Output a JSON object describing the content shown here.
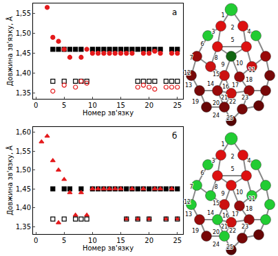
{
  "chart_data": [
    {
      "type": "scatter",
      "panel_label": "а",
      "x_label": "Номер зв'язку",
      "y_label": "Довжина зв'язку, Å",
      "xlim": [
        -0.5,
        26
      ],
      "xticks": [
        0,
        5,
        10,
        15,
        20,
        25
      ],
      "ylim": [
        1.335,
        1.575
      ],
      "yticks": [
        {
          "value": 1.35,
          "label": "1,35"
        },
        {
          "value": 1.4,
          "label": "1,40"
        },
        {
          "value": 1.45,
          "label": "1,45"
        },
        {
          "value": 1.5,
          "label": "1,50"
        },
        {
          "value": 1.55,
          "label": "1,55"
        }
      ],
      "grid": false,
      "series": [
        {
          "color": "#000000",
          "marker": "square",
          "x": [
            3,
            4,
            5,
            6,
            7,
            8,
            10,
            11,
            12,
            13,
            14,
            15,
            16,
            17,
            18,
            19,
            20,
            21,
            22,
            24,
            25
          ],
          "values": [
            1.46,
            1.46,
            1.46,
            1.46,
            1.46,
            1.46,
            1.46,
            1.46,
            1.46,
            1.46,
            1.46,
            1.46,
            1.46,
            1.46,
            1.46,
            1.46,
            1.46,
            1.46,
            1.46,
            1.46,
            1.46
          ]
        },
        {
          "color": "#e41a1c",
          "marker": "circle",
          "x": [
            2,
            3,
            4,
            5,
            6,
            8,
            9,
            10,
            11,
            12,
            13,
            14,
            15,
            16,
            17,
            19,
            20,
            21,
            22,
            24,
            25
          ],
          "values": [
            1.565,
            1.49,
            1.48,
            1.46,
            1.44,
            1.44,
            1.46,
            1.45,
            1.45,
            1.45,
            1.45,
            1.45,
            1.45,
            1.45,
            1.45,
            1.45,
            1.45,
            1.455,
            1.45,
            1.45,
            1.45
          ]
        },
        {
          "color": "#000000",
          "marker": "square-open",
          "x": [
            3,
            5,
            7,
            8,
            9,
            18,
            19,
            20,
            21,
            23,
            24,
            25
          ],
          "values": [
            1.38,
            1.38,
            1.38,
            1.38,
            1.38,
            1.38,
            1.38,
            1.38,
            1.38,
            1.38,
            1.38,
            1.38
          ]
        },
        {
          "color": "#e41a1c",
          "marker": "circle-open",
          "x": [
            3,
            5,
            7,
            8,
            9,
            18,
            19,
            20,
            21,
            23,
            24,
            25
          ],
          "values": [
            1.355,
            1.37,
            1.365,
            1.38,
            1.375,
            1.365,
            1.37,
            1.365,
            1.36,
            1.365,
            1.365,
            1.365
          ]
        }
      ]
    },
    {
      "type": "scatter",
      "panel_label": "б",
      "x_label": "Номер зв'язку",
      "y_label": "Довжина зв'язку, Å",
      "xlim": [
        -0.5,
        26
      ],
      "xticks": [
        0,
        5,
        10,
        15,
        20,
        25
      ],
      "ylim": [
        1.33,
        1.615
      ],
      "yticks": [
        {
          "value": 1.35,
          "label": "1,35"
        },
        {
          "value": 1.4,
          "label": "1,40"
        },
        {
          "value": 1.45,
          "label": "1,45"
        },
        {
          "value": 1.5,
          "label": "1,50"
        },
        {
          "value": 1.55,
          "label": "1,55"
        },
        {
          "value": 1.6,
          "label": "1,60"
        }
      ],
      "grid": false,
      "series": [
        {
          "color": "#000000",
          "marker": "square",
          "x": [
            3,
            5,
            6,
            8,
            10,
            11,
            12,
            13,
            14,
            15,
            16,
            17,
            18,
            19,
            20,
            21,
            22,
            23,
            24,
            25
          ],
          "values": [
            1.45,
            1.45,
            1.45,
            1.45,
            1.45,
            1.45,
            1.45,
            1.45,
            1.45,
            1.45,
            1.45,
            1.45,
            1.45,
            1.45,
            1.45,
            1.45,
            1.45,
            1.45,
            1.45,
            1.45
          ]
        },
        {
          "color": "#e41a1c",
          "marker": "triangle-up",
          "x": [
            1,
            2,
            3,
            4,
            4,
            5,
            6,
            7,
            8,
            9,
            10,
            11,
            12,
            13,
            14,
            15,
            16,
            17,
            18,
            19,
            20,
            21,
            22,
            23,
            24,
            25
          ],
          "values": [
            1.575,
            1.59,
            1.525,
            1.5,
            1.36,
            1.475,
            1.44,
            1.38,
            1.44,
            1.38,
            1.45,
            1.45,
            1.45,
            1.45,
            1.45,
            1.45,
            1.37,
            1.45,
            1.37,
            1.45,
            1.37,
            1.45,
            1.45,
            1.37,
            1.45,
            1.37
          ]
        },
        {
          "color": "#000000",
          "marker": "square-open",
          "x": [
            3,
            5,
            7,
            8,
            9,
            16,
            18,
            20,
            23,
            25
          ],
          "values": [
            1.37,
            1.37,
            1.37,
            1.37,
            1.37,
            1.37,
            1.37,
            1.37,
            1.37,
            1.37
          ]
        }
      ]
    }
  ],
  "diagrams": [
    {
      "bond_labels": [
        "1",
        "2",
        "3",
        "4",
        "5",
        "6",
        "7",
        "8",
        "9",
        "10",
        "11",
        "12",
        "13",
        "14",
        "15",
        "16",
        "17",
        "18",
        "19",
        "20",
        "21",
        "22",
        "23",
        "24",
        "25"
      ],
      "atom_colors": [
        "#22cc33",
        "#dd1111",
        "#dd1111",
        "#22cc33",
        "#22cc33",
        "#dd1111",
        "#dd1111",
        "#990a0a",
        "#116611",
        "#990a0a",
        "#cc1111",
        "#cc1111",
        "#770808",
        "#cc1111",
        "#990a0a",
        "#770808",
        "#770808",
        "#990a0a",
        "#cc1111",
        "#990a0a",
        "#770808",
        "#660606",
        "#770808",
        "#770808",
        "#660606",
        "#550505"
      ]
    },
    {
      "bond_labels": [
        "1",
        "2",
        "3",
        "4",
        "5",
        "6",
        "7",
        "8",
        "9",
        "10",
        "11",
        "12",
        "13",
        "14",
        "15",
        "16",
        "17",
        "18",
        "19",
        "20",
        "21",
        "22",
        "23",
        "24",
        "25"
      ],
      "atom_colors": [
        "#22cc33",
        "#dd1111",
        "#dd1111",
        "#22cc33",
        "#22cc33",
        "#dd1111",
        "#dd1111",
        "#22cc33",
        "#dd1111",
        "#22cc33",
        "#22cc33",
        "#22cc33",
        "#22cc33",
        "#cc1111",
        "#990a0a",
        "#22cc33",
        "#990a0a",
        "#22cc33",
        "#cc1111",
        "#990a0a",
        "#22cc33",
        "#770808",
        "#22cc33",
        "#770808",
        "#660606",
        "#550505"
      ]
    }
  ]
}
